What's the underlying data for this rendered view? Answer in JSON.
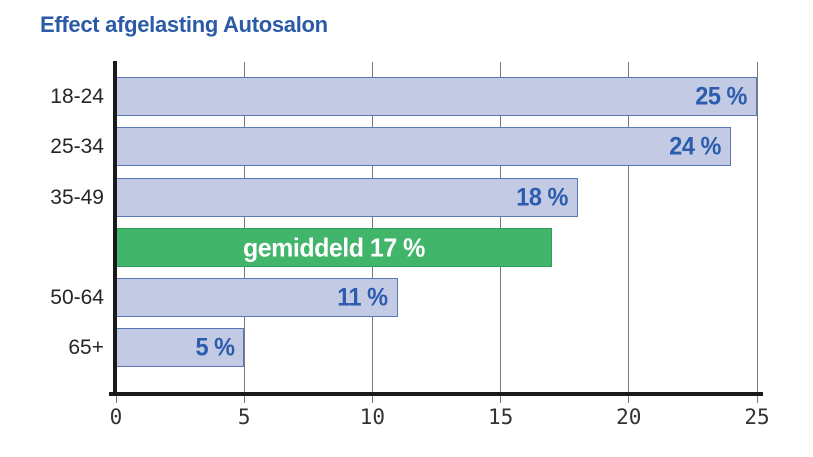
{
  "chart_data": {
    "type": "bar",
    "orientation": "horizontal",
    "title": "Effect afgelasting Autosalon",
    "xlabel": "",
    "ylabel": "",
    "xlim": [
      0,
      25
    ],
    "xticks": [
      0,
      5,
      10,
      15,
      20,
      25
    ],
    "grid": true,
    "unit": "%",
    "categories": [
      "18-24",
      "25-34",
      "35-49",
      "gemiddeld",
      "50-64",
      "65+"
    ],
    "values": [
      25,
      24,
      18,
      17,
      11,
      5
    ],
    "rows": [
      {
        "category": "18-24",
        "value": 25,
        "bar_label": "25 %",
        "style": "normal"
      },
      {
        "category": "25-34",
        "value": 24,
        "bar_label": "24 %",
        "style": "normal"
      },
      {
        "category": "35-49",
        "value": 18,
        "bar_label": "18 %",
        "style": "normal"
      },
      {
        "category": "",
        "value": 17,
        "bar_label": "gemiddeld 17 %",
        "style": "average"
      },
      {
        "category": "50-64",
        "value": 11,
        "bar_label": "11 %",
        "style": "normal"
      },
      {
        "category": "65+",
        "value": 5,
        "bar_label": "5 %",
        "style": "normal"
      }
    ]
  },
  "colors": {
    "title_blue": "#2b5ba7",
    "value_label_blue": "#2b5cad",
    "bar_fill": "#c3cae4",
    "bar_border": "#5b76b8",
    "average_fill": "#41b56a",
    "average_border": "#2f9e58",
    "average_text": "#ffffff",
    "axis_black": "#1a1a1a",
    "grid_gray": "#7a7a7a",
    "tick_text": "#333333",
    "category_text": "#262626"
  }
}
